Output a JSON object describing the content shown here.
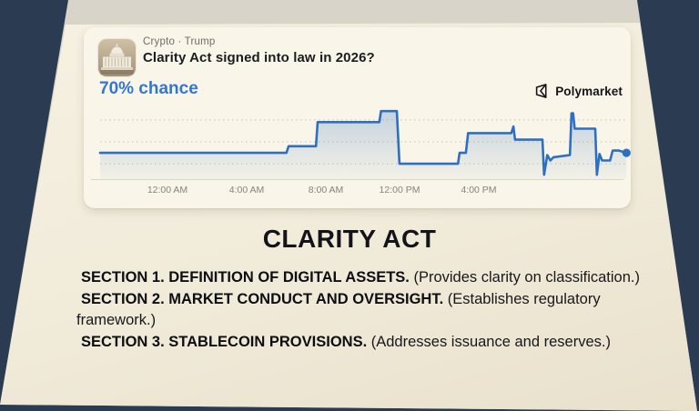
{
  "scene": {
    "background_color": "#2b3b51",
    "paper_edge_color": "#d6d2c6",
    "paper_color": "#f1ebda"
  },
  "market_card": {
    "category": "Crypto · Trump",
    "title": "Clarity Act signed into law in 2026?",
    "chance": "70% chance",
    "chance_color": "#3277d5",
    "brand": "Polymarket",
    "brand_icon": "polymarket-cube-icon",
    "avatar_icon": "capitol-building-icon"
  },
  "chart_data": {
    "type": "area",
    "current_value_pct": 70,
    "line_color": "#2e6fc0",
    "fill_color": "#5b8cc8",
    "grid": "dotted-horizontal",
    "ylim_pct": [
      58,
      92
    ],
    "grid_values_pct": [
      65,
      75,
      85
    ],
    "x_ticks": [
      {
        "label": "12:00 AM",
        "x_pct": 12.8
      },
      {
        "label": "4:00 AM",
        "x_pct": 27.8
      },
      {
        "label": "8:00 AM",
        "x_pct": 42.8
      },
      {
        "label": "12:00 PM",
        "x_pct": 56.7
      },
      {
        "label": "4:00 PM",
        "x_pct": 71.7
      }
    ],
    "points": [
      [
        0,
        70
      ],
      [
        35.3,
        70
      ],
      [
        35.7,
        73
      ],
      [
        40.9,
        73
      ],
      [
        41.2,
        84
      ],
      [
        52.9,
        84
      ],
      [
        53.2,
        89
      ],
      [
        56.2,
        89
      ],
      [
        56.7,
        65
      ],
      [
        67.8,
        65
      ],
      [
        68.1,
        70
      ],
      [
        69.3,
        70
      ],
      [
        69.7,
        79
      ],
      [
        77.9,
        79
      ],
      [
        78.3,
        82
      ],
      [
        78.6,
        76
      ],
      [
        83.8,
        76
      ],
      [
        84.1,
        60
      ],
      [
        84.7,
        69
      ],
      [
        85.3,
        66.5
      ],
      [
        85.9,
        68
      ],
      [
        89.0,
        69
      ],
      [
        89.3,
        88
      ],
      [
        89.6,
        88
      ],
      [
        89.9,
        81
      ],
      [
        93.8,
        81
      ],
      [
        94.1,
        60
      ],
      [
        94.6,
        69.5
      ],
      [
        95.1,
        66.5
      ],
      [
        96.6,
        66.5
      ],
      [
        97.1,
        71
      ],
      [
        98.3,
        71
      ],
      [
        99.7,
        70
      ]
    ]
  },
  "document": {
    "heading": "CLARITY ACT",
    "sections": [
      {
        "title": "SECTION 1. DEFINITION OF DIGITAL ASSETS.",
        "note": "(Provides clarity on classification.)"
      },
      {
        "title": "SECTION 2. MARKET CONDUCT AND OVERSIGHT.",
        "note": "(Establishes regulatory framework.)"
      },
      {
        "title": "SECTION 3. STABLECOIN PROVISIONS.",
        "note": "(Addresses issuance and reserves.)"
      }
    ]
  }
}
